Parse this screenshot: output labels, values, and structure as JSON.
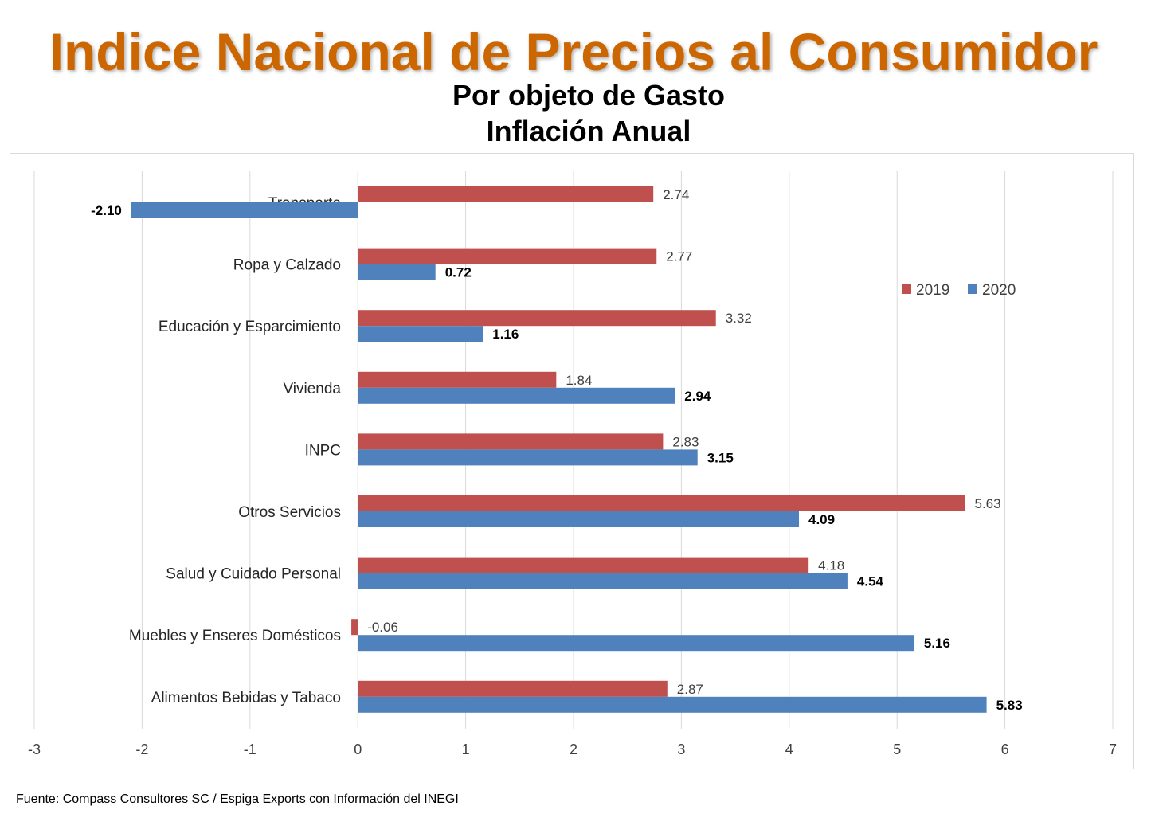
{
  "title": "Indice Nacional de Precios al Consumidor",
  "subtitle1": "Por objeto de Gasto",
  "subtitle2": "Inflación Anual",
  "footer": "Fuente: Compass Consultores SC / Espiga Exports con Información del INEGI",
  "chart_data": {
    "type": "bar",
    "orientation": "horizontal",
    "categories": [
      "Transporte",
      "Ropa y Calzado",
      "Educación y Esparcimiento",
      "Vivienda",
      "INPC",
      "Otros Servicios",
      "Salud y Cuidado Personal",
      "Muebles y Enseres Domésticos",
      "Alimentos Bebidas y Tabaco"
    ],
    "series": [
      {
        "name": "2019",
        "color": "#c0504d",
        "values": [
          2.74,
          2.77,
          3.32,
          1.84,
          2.83,
          5.63,
          4.18,
          -0.06,
          2.87
        ],
        "labels": [
          "2.74",
          "2.77",
          "3.32",
          "1.84",
          "2.83",
          "5.63",
          "4.18",
          "-0.06",
          "2.87"
        ]
      },
      {
        "name": "2020",
        "color": "#4f81bd",
        "values": [
          -2.1,
          0.72,
          1.16,
          2.94,
          3.15,
          4.09,
          4.54,
          5.16,
          5.83
        ],
        "labels": [
          "-2.10",
          "0.72",
          "1.16",
          "2.94",
          "3.15",
          "4.09",
          "4.54",
          "5.16",
          "5.83"
        ]
      }
    ],
    "xlim": [
      -3,
      7
    ],
    "xticks": [
      "-3",
      "-2",
      "-1",
      "0",
      "1",
      "2",
      "3",
      "4",
      "5",
      "6",
      "7"
    ],
    "grid": true,
    "legend": "top-right"
  }
}
